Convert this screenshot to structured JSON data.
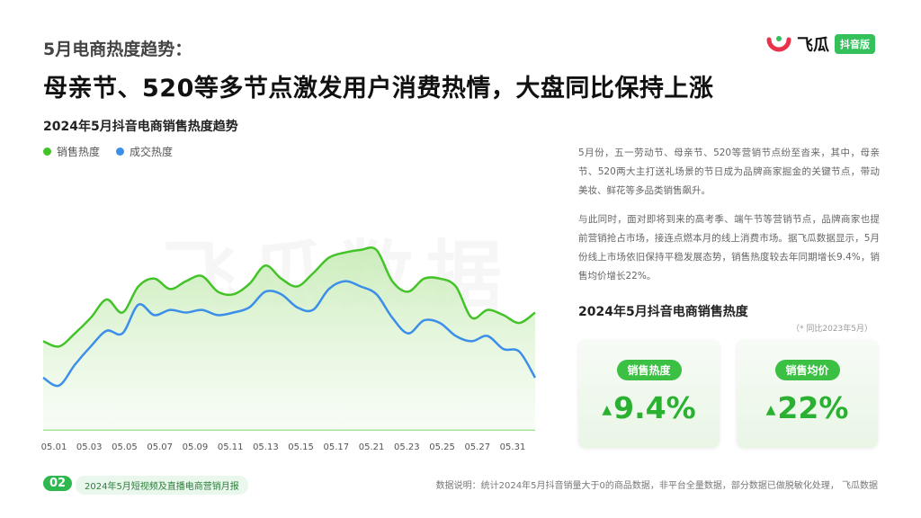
{
  "header": {
    "eyebrow": "5月电商热度趋势：",
    "headline": "母亲节、520等多节点激发用户消费热情，大盘同比保持上涨"
  },
  "logo": {
    "text": "飞瓜",
    "badge": "抖音版"
  },
  "watermark": "飞瓜数据",
  "chart_data": {
    "type": "area",
    "title": "2024年5月抖音电商销售热度趋势",
    "legend_position": "top-left",
    "grid": false,
    "x_tick_labels": [
      "05.01",
      "05.03",
      "05.05",
      "05.07",
      "05.09",
      "05.11",
      "05.13",
      "05.15",
      "05.17",
      "05.21",
      "05.23",
      "05.25",
      "05.27",
      "05.31"
    ],
    "series": [
      {
        "name": "销售热度",
        "color": "#44c329",
        "fill": true,
        "values": [
          34,
          32,
          37,
          43,
          50,
          45,
          55,
          58,
          54,
          57,
          59,
          53,
          52,
          56,
          63,
          58,
          55,
          60,
          66,
          68,
          69,
          69,
          57,
          53,
          58,
          58,
          55,
          43,
          46,
          44,
          41,
          45
        ]
      },
      {
        "name": "成交热度",
        "color": "#3c8fe8",
        "fill": false,
        "values": [
          20,
          17,
          25,
          32,
          38,
          37,
          48,
          44,
          46,
          45,
          46,
          44,
          45,
          47,
          53,
          52,
          47,
          46,
          54,
          57,
          55,
          52,
          43,
          37,
          42,
          41,
          36,
          34,
          36,
          31,
          30,
          20
        ]
      }
    ],
    "ylim": [
      0,
      100
    ]
  },
  "description": {
    "paragraphs": [
      "5月份，五一劳动节、母亲节、520等营销节点纷至沓来，其中，母亲节、520两大主打送礼场景的节日成为品牌商家掘金的关键节点，带动美妆、鲜花等多品类销售飙升。",
      "与此同时，面对即将到来的高考季、端午节等营销节点，品牌商家也提前营销抢占市场，接连点燃本月的线上消费市场。据飞瓜数据显示，5月份线上市场依旧保持平稳发展态势，销售热度较去年同期增长9.4%，销售均价增长22%。"
    ]
  },
  "kpi": {
    "title": "2024年5月抖音电商销售热度",
    "note": "（* 同比2023年5月）",
    "cards": [
      {
        "label": "销售热度",
        "value": "9.4%",
        "arrow": "▲"
      },
      {
        "label": "销售均价",
        "value": "22%",
        "arrow": "▲"
      }
    ]
  },
  "footer": {
    "page_num": "02",
    "report": "2024年5月短视频及直播电商营销月报",
    "note": "数据说明：统计2024年5月抖音销量大于0的商品数据，非平台全量数据，部分数据已做脱敏化处理， 飞瓜数据"
  },
  "colors": {
    "accent": "#3cc043",
    "line_green": "#44c329",
    "line_blue": "#3c8fe8"
  }
}
